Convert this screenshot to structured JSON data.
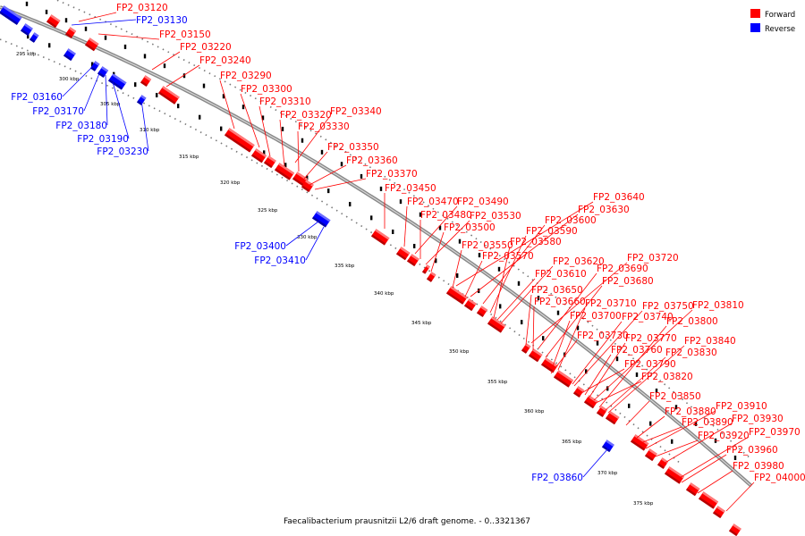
{
  "legend": {
    "forward": {
      "label": "Forward",
      "color": "#ff0000"
    },
    "reverse": {
      "label": "Reverse",
      "color": "#0000ff"
    }
  },
  "caption": "Faecalibacterium prausnitzii L2/6 draft genome. - 0..3321367",
  "scale_labels": [
    "295 kbp",
    "300 kbp",
    "305 kbp",
    "310 kbp",
    "315 kbp",
    "320 kbp",
    "325 kbp",
    "330 kbp",
    "335 kbp",
    "340 kbp",
    "345 kbp",
    "350 kbp",
    "355 kbp",
    "360 kbp",
    "365 kbp",
    "370 kbp",
    "375 kbp"
  ],
  "forward_genes": [
    "FP2_03120",
    "FP2_03150",
    "FP2_03220",
    "FP2_03240",
    "FP2_03290",
    "FP2_03300",
    "FP2_03310",
    "FP2_03320",
    "FP2_03340",
    "FP2_03330",
    "FP2_03350",
    "FP2_03360",
    "FP2_03370",
    "FP2_03450",
    "FP2_03470",
    "FP2_03490",
    "FP2_03480",
    "FP2_03530",
    "FP2_03500",
    "FP2_03640",
    "FP2_03630",
    "FP2_03600",
    "FP2_03590",
    "FP2_03580",
    "FP2_03550",
    "FP2_03570",
    "FP2_03620",
    "FP2_03610",
    "FP2_03720",
    "FP2_03690",
    "FP2_03680",
    "FP2_03650",
    "FP2_03660",
    "FP2_03710",
    "FP2_03700",
    "FP2_03750",
    "FP2_03810",
    "FP2_03740",
    "FP2_03800",
    "FP2_03730",
    "FP2_03770",
    "FP2_03840",
    "FP2_03760",
    "FP2_03830",
    "FP2_03790",
    "FP2_03820",
    "FP2_03850",
    "FP2_03910",
    "FP2_03880",
    "FP2_03930",
    "FP2_03890",
    "FP2_03970",
    "FP2_03920",
    "FP2_03960",
    "FP2_03980",
    "FP2_04000"
  ],
  "reverse_genes": [
    "FP2_03130",
    "FP2_03160",
    "FP2_03170",
    "FP2_03180",
    "FP2_03190",
    "FP2_03230",
    "FP2_03400",
    "FP2_03410",
    "FP2_03860"
  ]
}
